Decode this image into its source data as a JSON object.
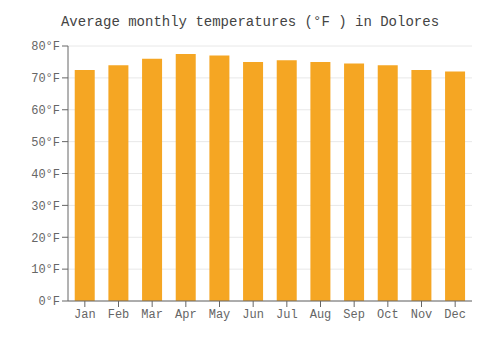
{
  "chart_data": {
    "type": "bar",
    "title": "Average monthly temperatures (°F ) in Dolores",
    "categories": [
      "Jan",
      "Feb",
      "Mar",
      "Apr",
      "May",
      "Jun",
      "Jul",
      "Aug",
      "Sep",
      "Oct",
      "Nov",
      "Dec"
    ],
    "values": [
      72.5,
      74.0,
      76.0,
      77.5,
      77.0,
      75.0,
      75.5,
      75.0,
      74.5,
      74.0,
      72.5,
      72.0
    ],
    "color": "#F5A623",
    "ylim": [
      0,
      80
    ],
    "yticks": [
      {
        "value": 0,
        "label": "0°F"
      },
      {
        "value": 10,
        "label": "10°F"
      },
      {
        "value": 20,
        "label": "20°F"
      },
      {
        "value": 30,
        "label": "30°F"
      },
      {
        "value": 40,
        "label": "40°F"
      },
      {
        "value": 50,
        "label": "50°F"
      },
      {
        "value": 60,
        "label": "60°F"
      },
      {
        "value": 70,
        "label": "70°F"
      },
      {
        "value": 80,
        "label": "80°F"
      }
    ],
    "grid": true
  }
}
